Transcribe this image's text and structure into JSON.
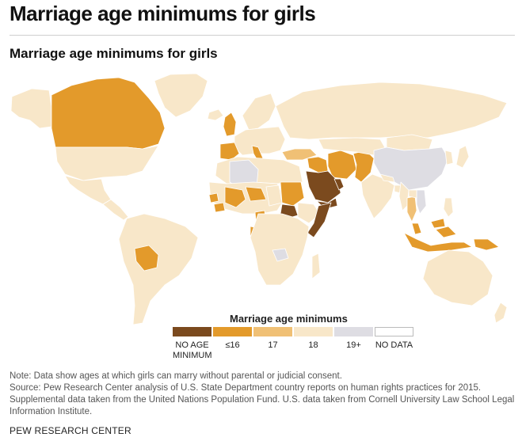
{
  "header": {
    "page_title": "Marriage age minimums for girls",
    "chart_title": "Marriage age minimums for girls"
  },
  "colors": {
    "no_minimum": "#7b4a1e",
    "le16": "#e39a2b",
    "age17": "#f0c075",
    "age18": "#f8e7c9",
    "age19plus": "#dedde3",
    "no_data": "#ffffff",
    "border": "#ffffff"
  },
  "legend": {
    "title": "Marriage age minimums",
    "items": [
      {
        "label_line1": "NO AGE",
        "label_line2": "MINIMUM",
        "color": "#7b4a1e"
      },
      {
        "label_line1": "≤16",
        "label_line2": "",
        "color": "#e39a2b"
      },
      {
        "label_line1": "17",
        "label_line2": "",
        "color": "#f0c075"
      },
      {
        "label_line1": "18",
        "label_line2": "",
        "color": "#f8e7c9"
      },
      {
        "label_line1": "19+",
        "label_line2": "",
        "color": "#dedde3"
      },
      {
        "label_line1": "NO DATA",
        "label_line2": "",
        "color": "#ffffff"
      }
    ]
  },
  "map_regions": [
    {
      "name": "alaska",
      "category": "age18"
    },
    {
      "name": "canada",
      "category": "le16"
    },
    {
      "name": "greenland",
      "category": "age18"
    },
    {
      "name": "usa",
      "category": "age18"
    },
    {
      "name": "mexico",
      "category": "age18"
    },
    {
      "name": "central-america",
      "category": "age18"
    },
    {
      "name": "south-america",
      "category": "age18"
    },
    {
      "name": "bolivia",
      "category": "le16"
    },
    {
      "name": "iceland",
      "category": "age18"
    },
    {
      "name": "united-kingdom",
      "category": "le16"
    },
    {
      "name": "scandinavia",
      "category": "age18"
    },
    {
      "name": "europe",
      "category": "age18"
    },
    {
      "name": "spain",
      "category": "le16"
    },
    {
      "name": "italy",
      "category": "le16"
    },
    {
      "name": "russia",
      "category": "age18"
    },
    {
      "name": "turkey",
      "category": "age17"
    },
    {
      "name": "north-africa",
      "category": "age18"
    },
    {
      "name": "algeria",
      "category": "age19plus"
    },
    {
      "name": "mali",
      "category": "le16"
    },
    {
      "name": "niger",
      "category": "le16"
    },
    {
      "name": "west-africa",
      "category": "age18"
    },
    {
      "name": "senegal",
      "category": "le16"
    },
    {
      "name": "guinea",
      "category": "le16"
    },
    {
      "name": "chad",
      "category": "age18"
    },
    {
      "name": "sudan",
      "category": "le16"
    },
    {
      "name": "south-sudan",
      "category": "no_minimum"
    },
    {
      "name": "ethiopia",
      "category": "age18"
    },
    {
      "name": "somalia",
      "category": "no_minimum"
    },
    {
      "name": "cameroon",
      "category": "le16"
    },
    {
      "name": "gabon",
      "category": "le16"
    },
    {
      "name": "central-southern-africa",
      "category": "age18"
    },
    {
      "name": "zambia",
      "category": "age19plus"
    },
    {
      "name": "madagascar",
      "category": "age18"
    },
    {
      "name": "saudi-arabia",
      "category": "no_minimum"
    },
    {
      "name": "yemen",
      "category": "no_minimum"
    },
    {
      "name": "gulf-states",
      "category": "no_minimum"
    },
    {
      "name": "syria-iraq",
      "category": "le16"
    },
    {
      "name": "iran",
      "category": "le16"
    },
    {
      "name": "afghanistan-pakistan",
      "category": "le16"
    },
    {
      "name": "central-asia",
      "category": "age18"
    },
    {
      "name": "mongolia",
      "category": "age18"
    },
    {
      "name": "china",
      "category": "age19plus"
    },
    {
      "name": "korea",
      "category": "age18"
    },
    {
      "name": "japan",
      "category": "age18"
    },
    {
      "name": "india",
      "category": "age18"
    },
    {
      "name": "nepal",
      "category": "age18"
    },
    {
      "name": "bangladesh",
      "category": "age18"
    },
    {
      "name": "southeast-asia",
      "category": "age18"
    },
    {
      "name": "myanmar",
      "category": "age18"
    },
    {
      "name": "thailand",
      "category": "age17"
    },
    {
      "name": "vietnam",
      "category": "age19plus"
    },
    {
      "name": "malaysia",
      "category": "le16"
    },
    {
      "name": "philippines",
      "category": "age18"
    },
    {
      "name": "indonesia",
      "category": "le16"
    },
    {
      "name": "papua-new-guinea",
      "category": "le16"
    },
    {
      "name": "australia",
      "category": "age18"
    },
    {
      "name": "new-zealand",
      "category": "age18"
    }
  ],
  "notes": {
    "line1": "Note: Data show ages at which girls can marry without parental or judicial consent.",
    "line2": "Source: Pew Research Center analysis of U.S. State Department country reports on human rights practices for 2015.",
    "line3": "Supplemental data taken from the United Nations Population Fund. U.S. data taken from Cornell University Law School Legal",
    "line4": "Information Institute."
  },
  "footer": {
    "source": "PEW RESEARCH CENTER"
  }
}
